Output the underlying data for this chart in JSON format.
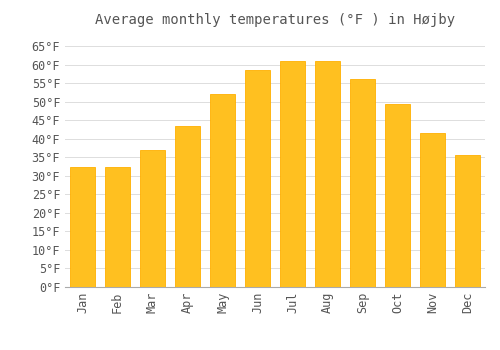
{
  "title": "Average monthly temperatures (°F ) in Højby",
  "months": [
    "Jan",
    "Feb",
    "Mar",
    "Apr",
    "May",
    "Jun",
    "Jul",
    "Aug",
    "Sep",
    "Oct",
    "Nov",
    "Dec"
  ],
  "values": [
    32.5,
    32.5,
    37.0,
    43.5,
    52.0,
    58.5,
    61.0,
    61.0,
    56.0,
    49.5,
    41.5,
    35.5
  ],
  "bar_color": "#FFC020",
  "bar_edge_color": "#FFB000",
  "background_color": "#FFFFFF",
  "grid_color": "#DDDDDD",
  "text_color": "#555555",
  "ylim": [
    0,
    68
  ],
  "yticks": [
    0,
    5,
    10,
    15,
    20,
    25,
    30,
    35,
    40,
    45,
    50,
    55,
    60,
    65
  ],
  "title_fontsize": 10,
  "tick_fontsize": 8.5,
  "bar_width": 0.7
}
